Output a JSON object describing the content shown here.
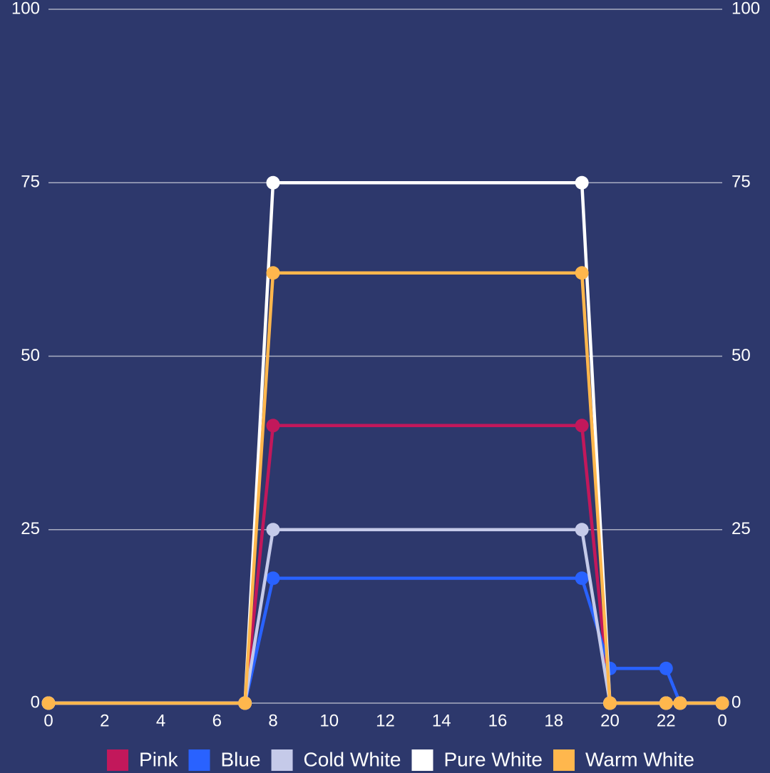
{
  "chart_data": {
    "type": "line",
    "x": [
      0,
      7,
      8,
      19,
      20,
      22,
      22.5,
      24
    ],
    "series": [
      {
        "name": "Pink",
        "color": "#c2185b",
        "values": [
          0,
          0,
          40,
          40,
          0,
          0,
          0,
          0
        ]
      },
      {
        "name": "Blue",
        "color": "#2962ff",
        "values": [
          0,
          0,
          18,
          18,
          5,
          5,
          0,
          0
        ]
      },
      {
        "name": "Cold White",
        "color": "#c5cae9",
        "values": [
          0,
          0,
          25,
          25,
          0,
          0,
          0,
          0
        ]
      },
      {
        "name": "Pure White",
        "color": "#ffffff",
        "values": [
          0,
          0,
          75,
          75,
          0,
          0,
          0,
          0
        ]
      },
      {
        "name": "Warm White",
        "color": "#ffb74d",
        "values": [
          0,
          0,
          62,
          62,
          0,
          0,
          0,
          0
        ]
      }
    ],
    "xlim": [
      0,
      24
    ],
    "xticks": [
      0,
      2,
      4,
      6,
      8,
      10,
      12,
      14,
      16,
      18,
      20,
      22,
      {
        "value": 24,
        "label": "0"
      }
    ],
    "ylim": [
      0,
      100
    ],
    "yticks": [
      0,
      25,
      50,
      75,
      100
    ],
    "y2lim": [
      0,
      100
    ],
    "y2ticks": [
      0,
      25,
      50,
      75,
      100
    ],
    "grid": true,
    "legend": "bottom"
  }
}
